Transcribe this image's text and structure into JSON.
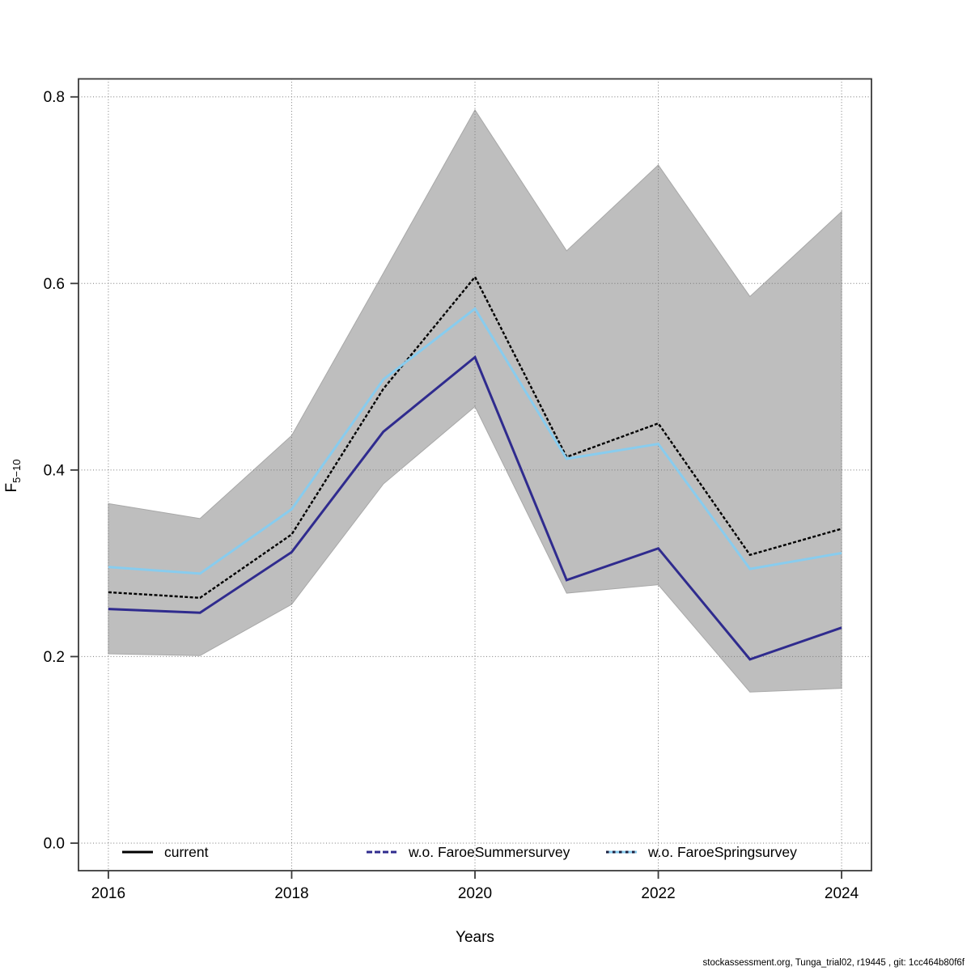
{
  "page": {
    "footer": "stockassessment.org, Tunga_trial02, r19445 , git: 1cc464b80f6f"
  },
  "chart_data": {
    "type": "line",
    "title": "",
    "xlabel": "Years",
    "ylabel_base": "F",
    "ylabel_sub": "5−10",
    "x": [
      2016,
      2017,
      2018,
      2019,
      2020,
      2021,
      2022,
      2023,
      2024
    ],
    "series": [
      {
        "name": "current",
        "color": "#000000",
        "dash": "4,2.3",
        "width": 2.4,
        "values": [
          0.269,
          0.263,
          0.331,
          0.487,
          0.607,
          0.414,
          0.45,
          0.309,
          0.337
        ]
      },
      {
        "name": "w.o. FaroeSummersurvey",
        "color": "#2F2B8E",
        "dash": "",
        "width": 3,
        "values": [
          0.251,
          0.247,
          0.312,
          0.441,
          0.521,
          0.282,
          0.316,
          0.197,
          0.231
        ]
      },
      {
        "name": "w.o. FaroeSpringsurvey",
        "color": "#88CCEE",
        "dash": "",
        "width": 3,
        "values": [
          0.296,
          0.289,
          0.358,
          0.497,
          0.573,
          0.412,
          0.428,
          0.294,
          0.311
        ]
      }
    ],
    "band": {
      "series": "current",
      "color": "#BEBEBE",
      "edge_color": "#A8A8A8",
      "upper": [
        0.364,
        0.348,
        0.437,
        0.611,
        0.786,
        0.635,
        0.727,
        0.586,
        0.677
      ],
      "lower": [
        0.203,
        0.201,
        0.256,
        0.385,
        0.468,
        0.268,
        0.277,
        0.162,
        0.166
      ]
    },
    "xlim": [
      2015.674,
      2024.326
    ],
    "ylim": [
      -0.0295,
      0.8193
    ],
    "xticks": [
      2016,
      2018,
      2020,
      2022,
      2024
    ],
    "yticks": [
      0.0,
      0.2,
      0.4,
      0.6,
      0.8
    ],
    "ytick_labels": [
      "0.0",
      "0.2",
      "0.4",
      "0.6",
      "0.8"
    ],
    "grid": "dotted",
    "grid_color": "#7a7a7a",
    "box_color": "#3a3a3a",
    "legend_position": "bottom-inside"
  },
  "legend": {
    "keys": [
      {
        "color": "#000000",
        "dash": "",
        "overlay_color": "",
        "overlay_dash": ""
      },
      {
        "color": "#2F2B8E",
        "dash": "7,3",
        "overlay_color": "",
        "overlay_dash": ""
      },
      {
        "color": "#88CCEE",
        "dash": "",
        "overlay_color": "#1b2040",
        "overlay_dash": "3.5,4.5"
      }
    ]
  }
}
